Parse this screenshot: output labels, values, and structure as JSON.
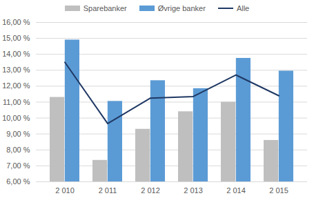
{
  "chart_data": {
    "type": "bar",
    "categories": [
      "2 010",
      "2 011",
      "2 012",
      "2 013",
      "2 014",
      "2 015"
    ],
    "series": [
      {
        "name": "Sparebanker",
        "color": "#bfbfbf",
        "type": "bar",
        "values": [
          11.3,
          7.35,
          9.3,
          10.4,
          11.0,
          8.6
        ]
      },
      {
        "name": "Øvrige banker",
        "color": "#5b9bd5",
        "type": "bar",
        "values": [
          14.9,
          11.05,
          12.35,
          11.85,
          13.75,
          12.95
        ]
      },
      {
        "name": "Alle",
        "color": "#1f3864",
        "type": "line",
        "values": [
          13.5,
          9.65,
          11.25,
          11.35,
          12.7,
          11.4
        ]
      }
    ],
    "ylim": [
      6,
      16
    ],
    "yticks": [
      {
        "value": 6,
        "label": "6,00 %"
      },
      {
        "value": 7,
        "label": "7,00 %"
      },
      {
        "value": 8,
        "label": "8,00 %"
      },
      {
        "value": 9,
        "label": "9,00 %"
      },
      {
        "value": 10,
        "label": "10,00 %"
      },
      {
        "value": 11,
        "label": "11,00 %"
      },
      {
        "value": 12,
        "label": "12,00 %"
      },
      {
        "value": 13,
        "label": "13,00 %"
      },
      {
        "value": 14,
        "label": "14,00 %"
      },
      {
        "value": 15,
        "label": "15,00 %"
      },
      {
        "value": 16,
        "label": "16,00 %"
      }
    ],
    "grid": true,
    "legend": "top"
  }
}
